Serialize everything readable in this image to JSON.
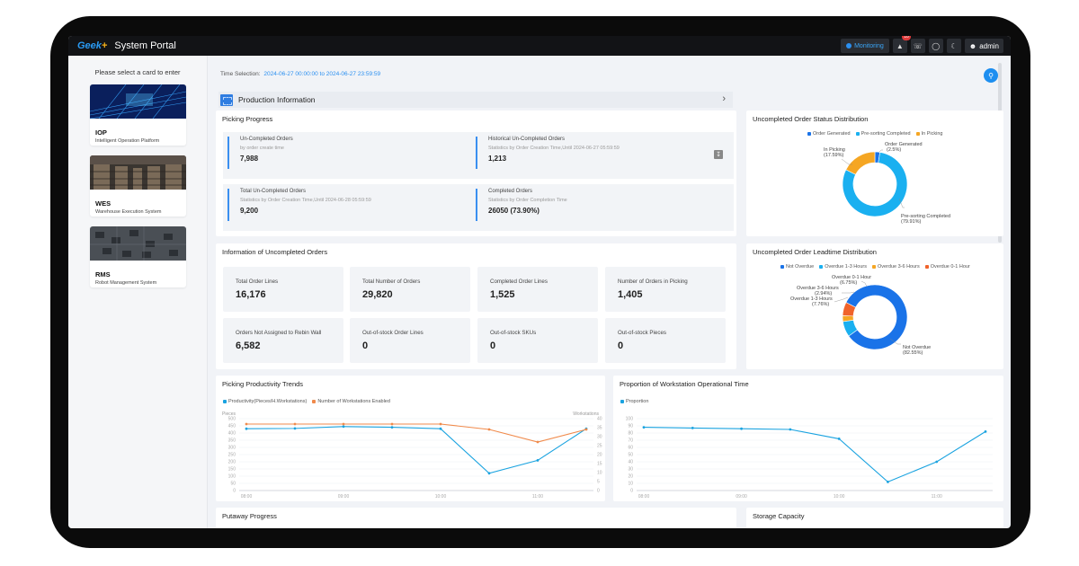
{
  "header": {
    "logo": "Geek",
    "logo_plus": "+",
    "title": "System Portal",
    "monitoring_label": "Monitoring",
    "notification_count": "10",
    "user_name": "admin",
    "icons": [
      "bell-icon",
      "phone-icon",
      "globe-icon",
      "moon-icon",
      "user-icon"
    ]
  },
  "sidebar": {
    "title": "Please select a card to enter",
    "cards": [
      {
        "name": "IOP",
        "desc": "Intelligent Operation Platform"
      },
      {
        "name": "WES",
        "desc": "Warehouse Execution System"
      },
      {
        "name": "RMS",
        "desc": "Robot Management System"
      }
    ]
  },
  "time_selection": {
    "label": "Time Selection:",
    "value": "2024-06-27 00:00:00 to 2024-06-27 23:59:59"
  },
  "section": {
    "title": "Production Information"
  },
  "picking_progress": {
    "title": "Picking Progress",
    "items": [
      {
        "label": "Un-Completed Orders",
        "sub": "by order create time",
        "value": "7,988"
      },
      {
        "label": "Historical Un-Completed Orders",
        "sub": "Statistics by Order Creation Time,Until 2024-06-27 05:59:59",
        "value": "1,213"
      },
      {
        "label": "Total Un-Completed Orders",
        "sub": "Statistics by Order Creation Time,Until 2024-06-28 05:59:59",
        "value": "9,200"
      },
      {
        "label": "Completed Orders",
        "sub": "Statistics by Order Completion Time",
        "value": "26050 (73.90%)"
      }
    ]
  },
  "uncompleted_info": {
    "title": "Information of Uncompleted Orders",
    "tiles": [
      {
        "label": "Total Order Lines",
        "value": "16,176"
      },
      {
        "label": "Total Number of Orders",
        "value": "29,820"
      },
      {
        "label": "Completed Order Lines",
        "value": "1,525"
      },
      {
        "label": "Number of Orders in Picking",
        "value": "1,405"
      },
      {
        "label": "Orders Not Assigned to Rebin Wall",
        "value": "6,582"
      },
      {
        "label": "Out-of-stock Order Lines",
        "value": "0"
      },
      {
        "label": "Out-of-stock SKUs",
        "value": "0"
      },
      {
        "label": "Out-of-stock Pieces",
        "value": "0"
      }
    ]
  },
  "status_distribution": {
    "title": "Uncompleted Order Status Distribution",
    "legend": [
      "Order Generated",
      "Pre-sorting Completed",
      "In Picking"
    ],
    "labels": [
      {
        "name": "In Picking",
        "pct": "(17.59%)"
      },
      {
        "name": "Order Generated",
        "pct": "(2.5%)"
      },
      {
        "name": "Pre-sorting Completed",
        "pct": "(79.91%)"
      }
    ]
  },
  "leadtime_distribution": {
    "title": "Uncompleted Order Leadtime Distribution",
    "legend": [
      "Not Overdue",
      "Overdue 1-3 Hours",
      "Overdue 3-6 Hours",
      "Overdue 0-1 Hour"
    ],
    "labels": [
      {
        "name": "Overdue 0-1 Hour",
        "pct": "(6.75%)"
      },
      {
        "name": "Overdue 3-6 Hours",
        "pct": "(2.94%)"
      },
      {
        "name": "Overdue 1-3 Hours",
        "pct": "(7.76%)"
      },
      {
        "name": "Not Overdue",
        "pct": "(82.55%)"
      }
    ]
  },
  "productivity_panel": {
    "title": "Picking Productivity Trends"
  },
  "proportion_panel": {
    "title": "Proportion of Workstation Operational Time"
  },
  "putaway_panel": {
    "title": "Putaway Progress"
  },
  "storage_panel": {
    "title": "Storage Capacity"
  },
  "colors": {
    "blue": "#1a73e8",
    "cyan": "#1ab0f0",
    "orange": "#f5a623",
    "red_orange": "#f0632b",
    "line_blue": "#1aa3e0",
    "line_orange": "#f08a4b"
  },
  "chart_data": [
    {
      "type": "pie",
      "title": "Uncompleted Order Status Distribution",
      "categories": [
        "Order Generated",
        "Pre-sorting Completed",
        "In Picking"
      ],
      "values": [
        2.5,
        79.91,
        17.59
      ],
      "colors": [
        "#1a73e8",
        "#1ab0f0",
        "#f5a623"
      ],
      "donut": true,
      "legend_position": "top"
    },
    {
      "type": "pie",
      "title": "Uncompleted Order Leadtime Distribution",
      "categories": [
        "Not Overdue",
        "Overdue 1-3 Hours",
        "Overdue 3-6 Hours",
        "Overdue 0-1 Hour"
      ],
      "values": [
        82.55,
        7.76,
        2.94,
        6.75
      ],
      "colors": [
        "#1a73e8",
        "#1ab0f0",
        "#f5a623",
        "#f0632b"
      ],
      "donut": true,
      "legend_position": "top"
    },
    {
      "type": "line",
      "title": "Picking Productivity Trends",
      "ylabel": "Pieces",
      "y2label": "Workstations",
      "x_ticks": [
        "08:00",
        "09:00",
        "10:00",
        "11:00"
      ],
      "ylim": [
        0,
        500
      ],
      "y_ticks": [
        0,
        50,
        100,
        150,
        200,
        250,
        300,
        350,
        400,
        450,
        500
      ],
      "y2lim": [
        0,
        40
      ],
      "y2_ticks": [
        0,
        5,
        10,
        15,
        20,
        25,
        30,
        35,
        40
      ],
      "x": [
        0,
        0.5,
        1,
        1.5,
        2,
        2.5,
        3,
        3.5
      ],
      "series": [
        {
          "name": "Productivity(Pieces/H.Workstations)",
          "axis": "left",
          "color": "#1aa3e0",
          "values": [
            430,
            432,
            445,
            440,
            430,
            120,
            210,
            430
          ]
        },
        {
          "name": "Number of Workstations Enabled",
          "axis": "right",
          "color": "#f08a4b",
          "values": [
            37,
            37,
            37,
            37,
            37,
            34,
            27,
            34
          ]
        }
      ],
      "legend_position": "top-left",
      "grid": true
    },
    {
      "type": "line",
      "title": "Proportion of Workstation Operational Time",
      "x_ticks": [
        "08:00",
        "09:00",
        "10:00",
        "11:00"
      ],
      "ylim": [
        0,
        100
      ],
      "y_ticks": [
        0,
        10,
        20,
        30,
        40,
        50,
        60,
        70,
        80,
        90,
        100
      ],
      "x": [
        0,
        0.5,
        1,
        1.5,
        2,
        2.5,
        3,
        3.5
      ],
      "series": [
        {
          "name": "Proportion",
          "color": "#1aa3e0",
          "values": [
            88,
            87,
            86,
            85,
            72,
            12,
            40,
            82
          ]
        }
      ],
      "legend_position": "top-left",
      "grid": true
    }
  ]
}
